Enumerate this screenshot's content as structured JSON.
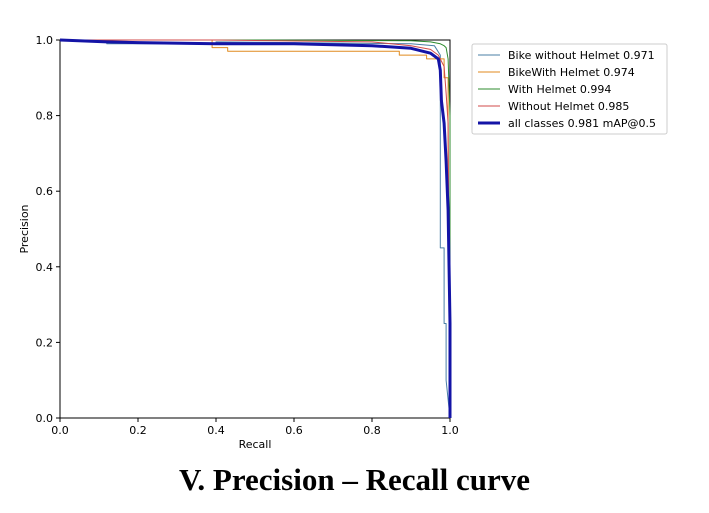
{
  "caption": "V. Precision – Recall curve",
  "chart_data": {
    "type": "line",
    "title": "",
    "xlabel": "Recall",
    "ylabel": "Precision",
    "xlim": [
      0,
      1
    ],
    "ylim": [
      0,
      1
    ],
    "xticks": [
      "0.0",
      "0.2",
      "0.4",
      "0.6",
      "0.8",
      "1.0"
    ],
    "yticks": [
      "0.0",
      "0.2",
      "0.4",
      "0.6",
      "0.8",
      "1.0"
    ],
    "grid": false,
    "legend_position": "upper-right-outside",
    "series": [
      {
        "name": "Bike without Helmet 0.971",
        "color": "#4a7fa6",
        "width": 1,
        "x": [
          0,
          0.12,
          0.12,
          0.4,
          0.4,
          0.9,
          0.96,
          0.975,
          0.975,
          0.985,
          0.985,
          0.99,
          0.99,
          1.0
        ],
        "y": [
          1.0,
          1.0,
          0.99,
          0.99,
          0.995,
          0.99,
          0.985,
          0.96,
          0.45,
          0.45,
          0.25,
          0.25,
          0.1,
          0.0
        ]
      },
      {
        "name": "BikeWith Helmet 0.974",
        "color": "#e08a1e",
        "width": 1,
        "x": [
          0,
          0.39,
          0.39,
          0.43,
          0.43,
          0.87,
          0.87,
          0.94,
          0.94,
          0.985,
          0.985,
          0.995,
          0.995,
          1.0
        ],
        "y": [
          1.0,
          1.0,
          0.98,
          0.98,
          0.97,
          0.97,
          0.96,
          0.96,
          0.95,
          0.95,
          0.9,
          0.9,
          0.7,
          0.0
        ]
      },
      {
        "name": "With Helmet 0.994",
        "color": "#2e8b2e",
        "width": 1,
        "x": [
          0,
          0.5,
          0.9,
          0.95,
          0.975,
          0.985,
          0.99,
          0.995,
          1.0,
          1.0
        ],
        "y": [
          1.0,
          1.0,
          0.998,
          0.995,
          0.99,
          0.985,
          0.98,
          0.95,
          0.8,
          0.0
        ]
      },
      {
        "name": "Without Helmet 0.985",
        "color": "#d14a4a",
        "width": 1,
        "x": [
          0,
          0.4,
          0.8,
          0.9,
          0.95,
          0.97,
          0.985,
          0.99,
          0.995,
          1.0
        ],
        "y": [
          1.0,
          1.0,
          0.995,
          0.985,
          0.975,
          0.96,
          0.93,
          0.86,
          0.78,
          0.0
        ]
      },
      {
        "name": "all classes 0.981 mAP@0.5",
        "color": "#1414a6",
        "width": 3,
        "x": [
          0,
          0.12,
          0.2,
          0.4,
          0.6,
          0.8,
          0.9,
          0.95,
          0.97,
          0.975,
          0.978,
          0.985,
          0.99,
          0.995,
          1.0,
          1.0
        ],
        "y": [
          1.0,
          0.995,
          0.993,
          0.99,
          0.99,
          0.985,
          0.978,
          0.965,
          0.95,
          0.92,
          0.84,
          0.78,
          0.68,
          0.55,
          0.25,
          0.0
        ]
      }
    ]
  }
}
